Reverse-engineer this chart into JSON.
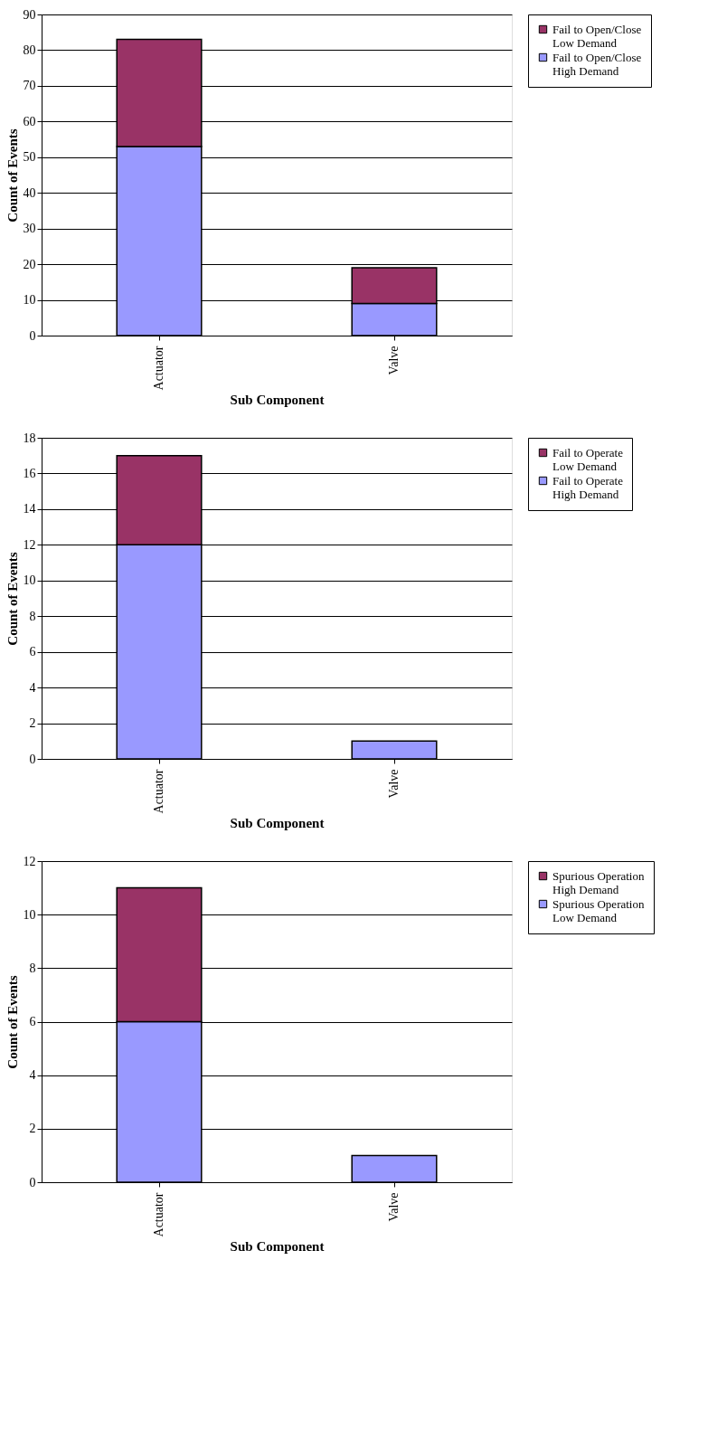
{
  "chart_data": [
    {
      "type": "bar",
      "stacked": true,
      "categories": [
        "Actuator",
        "Valve"
      ],
      "xlabel": "Sub Component",
      "ylabel": "Count of Events",
      "ylim": [
        0,
        90
      ],
      "yticks": [
        0,
        10,
        20,
        30,
        40,
        50,
        60,
        70,
        80,
        90
      ],
      "grid": "y",
      "legend": "right",
      "series": [
        {
          "name": "Fail to Open/Close\nHigh Demand",
          "color": "#9999ff",
          "values": [
            53,
            9
          ]
        },
        {
          "name": "Fail to Open/Close\nLow Demand",
          "color": "#993366",
          "values": [
            30,
            10
          ]
        }
      ]
    },
    {
      "type": "bar",
      "stacked": true,
      "categories": [
        "Actuator",
        "Valve"
      ],
      "xlabel": "Sub Component",
      "ylabel": "Count of Events",
      "ylim": [
        0,
        18
      ],
      "yticks": [
        0,
        2,
        4,
        6,
        8,
        10,
        12,
        14,
        16,
        18
      ],
      "grid": "y",
      "legend": "right",
      "series": [
        {
          "name": "Fail to Operate\nHigh Demand",
          "color": "#9999ff",
          "values": [
            12,
            1
          ]
        },
        {
          "name": "Fail to Operate\nLow Demand",
          "color": "#993366",
          "values": [
            5,
            0
          ]
        }
      ]
    },
    {
      "type": "bar",
      "stacked": true,
      "categories": [
        "Actuator",
        "Valve"
      ],
      "xlabel": "Sub Component",
      "ylabel": "Count of Events",
      "ylim": [
        0,
        12
      ],
      "yticks": [
        0,
        2,
        4,
        6,
        8,
        10,
        12
      ],
      "grid": "y",
      "legend": "right",
      "series": [
        {
          "name": "Spurious Operation\nLow Demand",
          "color": "#9999ff",
          "values": [
            6,
            1
          ]
        },
        {
          "name": "Spurious Operation\nHigh Demand",
          "color": "#993366",
          "values": [
            5,
            0
          ]
        }
      ]
    }
  ]
}
